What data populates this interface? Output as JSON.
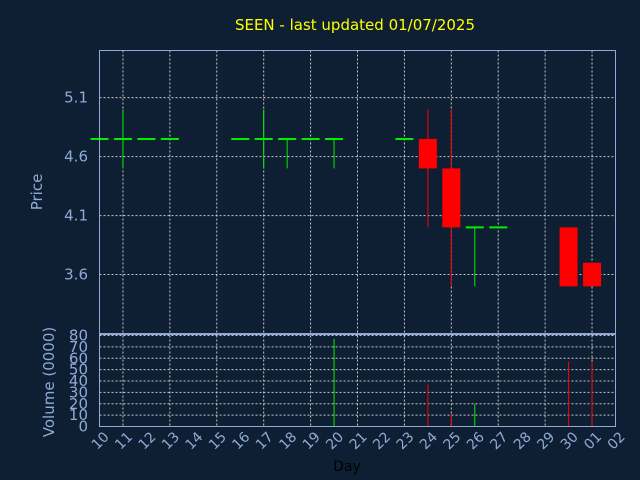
{
  "chart_data": [
    {
      "type": "candlestick",
      "title": "SEEN - last updated 01/07/2025",
      "ylabel": "Price",
      "ylim": [
        3.1,
        5.5
      ],
      "yticks": [
        5.1,
        4.6,
        4.1,
        3.6
      ],
      "ytick_labels": [
        "5.1",
        "4.6",
        "4.1",
        "3.6"
      ],
      "grid": true,
      "colors": {
        "up": "#00ee00",
        "down": "#ff0000",
        "title": "#ffff00",
        "axis": "#8faad6",
        "background": "#0f1f33",
        "grid": "#ffffff"
      },
      "candles": [
        {
          "day": "10",
          "open": 4.75,
          "high": 4.75,
          "low": 4.75,
          "close": 4.75
        },
        {
          "day": "11",
          "open": 4.75,
          "high": 5.0,
          "low": 4.5,
          "close": 4.75
        },
        {
          "day": "12",
          "open": 4.75,
          "high": 4.75,
          "low": 4.75,
          "close": 4.75
        },
        {
          "day": "13",
          "open": 4.75,
          "high": 4.75,
          "low": 4.75,
          "close": 4.75
        },
        {
          "day": "16",
          "open": 4.75,
          "high": 4.75,
          "low": 4.75,
          "close": 4.75
        },
        {
          "day": "17",
          "open": 4.75,
          "high": 5.0,
          "low": 4.5,
          "close": 4.75
        },
        {
          "day": "18",
          "open": 4.75,
          "high": 4.75,
          "low": 4.5,
          "close": 4.75
        },
        {
          "day": "19",
          "open": 4.75,
          "high": 4.75,
          "low": 4.75,
          "close": 4.75
        },
        {
          "day": "20",
          "open": 4.75,
          "high": 4.75,
          "low": 4.5,
          "close": 4.75
        },
        {
          "day": "23",
          "open": 4.75,
          "high": 4.75,
          "low": 4.75,
          "close": 4.75
        },
        {
          "day": "24",
          "open": 4.75,
          "high": 5.0,
          "low": 4.0,
          "close": 4.5
        },
        {
          "day": "25",
          "open": 4.5,
          "high": 5.0,
          "low": 3.5,
          "close": 4.0
        },
        {
          "day": "26",
          "open": 4.0,
          "high": 4.0,
          "low": 3.5,
          "close": 4.0
        },
        {
          "day": "27",
          "open": 4.0,
          "high": 4.0,
          "low": 4.0,
          "close": 4.0
        },
        {
          "day": "30",
          "open": 4.0,
          "high": 4.0,
          "low": 3.5,
          "close": 3.5
        },
        {
          "day": "01",
          "open": 3.7,
          "high": 3.7,
          "low": 3.5,
          "close": 3.5
        }
      ]
    },
    {
      "type": "bar",
      "ylabel": "Volume (0000)",
      "xlabel": "Day",
      "ylim": [
        0,
        80
      ],
      "yticks": [
        80,
        70,
        60,
        50,
        40,
        30,
        20,
        10,
        0
      ],
      "ytick_labels": [
        "80",
        "70",
        "60",
        "50",
        "40",
        "30",
        "20",
        "10",
        "0"
      ],
      "categories": [
        "10",
        "11",
        "12",
        "13",
        "14",
        "15",
        "16",
        "17",
        "18",
        "19",
        "20",
        "21",
        "22",
        "23",
        "24",
        "25",
        "26",
        "27",
        "28",
        "29",
        "30",
        "01",
        "02"
      ],
      "bars": [
        {
          "day": "20",
          "value": 77,
          "color": "#00ee00"
        },
        {
          "day": "24",
          "value": 37,
          "color": "#ff0000"
        },
        {
          "day": "25",
          "value": 11,
          "color": "#ff0000"
        },
        {
          "day": "26",
          "value": 20,
          "color": "#00ee00"
        },
        {
          "day": "30",
          "value": 57,
          "color": "#ff0000"
        },
        {
          "day": "01",
          "value": 57,
          "color": "#ff0000"
        }
      ]
    }
  ]
}
